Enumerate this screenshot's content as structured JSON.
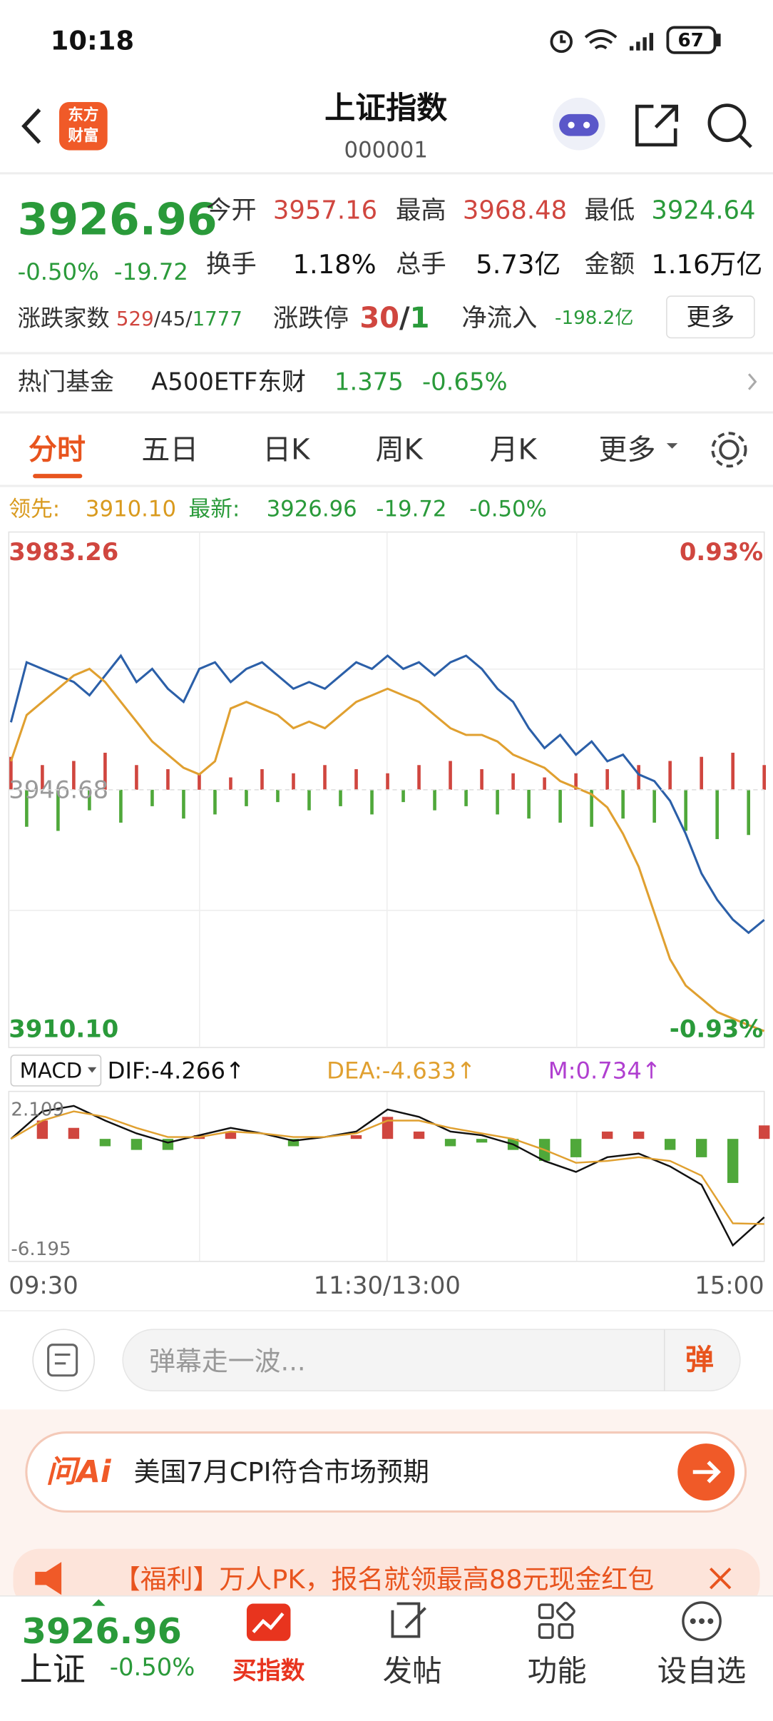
{
  "status": {
    "time": "10:18",
    "battery": "67"
  },
  "header": {
    "logo": [
      "东方",
      "财富"
    ],
    "title": "上证指数",
    "code": "000001"
  },
  "quote": {
    "price": "3926.96",
    "change_pct": "-0.50%",
    "change": "-19.72",
    "stats": [
      {
        "label": "今开",
        "value": "3957.16"
      },
      {
        "label": "最高",
        "value": "3968.48"
      },
      {
        "label": "最低",
        "value": "3924.64"
      },
      {
        "label": "换手",
        "value": "1.18%"
      },
      {
        "label": "总手",
        "value": "5.73亿"
      },
      {
        "label": "金额",
        "value": "1.16万亿"
      }
    ],
    "breadth": {
      "label": "涨跌家数",
      "up": "529",
      "flat": "45",
      "down": "1777"
    },
    "limit": {
      "label": "涨跌停",
      "up": "30",
      "down": "1"
    },
    "inflow": {
      "label": "净流入",
      "value": "-198.2亿"
    },
    "more": "更多"
  },
  "fund": {
    "label": "热门基金",
    "name": "A500ETF东财",
    "price": "1.375",
    "pct": "-0.65%"
  },
  "tabs": [
    "分时",
    "五日",
    "日K",
    "周K",
    "月K",
    "更多"
  ],
  "legend": {
    "lead_label": "领先:",
    "lead": "3910.10",
    "latest_label": "最新:",
    "latest": "3926.96",
    "change": "-19.72",
    "pct": "-0.50%"
  },
  "chart": {
    "type": "line",
    "ylim": [
      3910.1,
      3983.26
    ],
    "yticks": [
      3983.26,
      3946.68,
      {
        "value": 3910.1,
        "label": "3910.10"
      }
    ],
    "y2lim": [
      -0.93,
      0.93
    ],
    "y2ticks": [
      {
        "value": 0.93,
        "label": "0.93%"
      },
      {
        "value": -0.93,
        "label": "-0.93%"
      }
    ],
    "xticks": [
      "09:30",
      "11:30/13:00",
      "15:00"
    ],
    "series": [
      {
        "color": "#2b5fa8",
        "values": [
          3956.9,
          3966,
          3965,
          3964,
          3963,
          3961,
          3964,
          3967,
          3963,
          3965,
          3962,
          3960,
          3965,
          3966,
          3963,
          3965,
          3966,
          3964,
          3962,
          3963,
          3962,
          3964,
          3966,
          3965,
          3967,
          3965,
          3966,
          3964,
          3966,
          3967,
          3965,
          3962,
          3960,
          3956,
          3953,
          3955,
          3952,
          3954,
          3951,
          3952,
          3949,
          3948,
          3945,
          3940,
          3934,
          3930,
          3927,
          3925,
          3926.96
        ]
      },
      {
        "color": "#e0a030",
        "values": [
          3951,
          3958,
          3960,
          3962,
          3964,
          3965,
          3963,
          3960,
          3957,
          3954,
          3952,
          3950,
          3949,
          3951,
          3959,
          3960,
          3959,
          3958,
          3956,
          3957,
          3956,
          3958,
          3960,
          3961,
          3962,
          3961,
          3960,
          3958,
          3956,
          3955,
          3955,
          3954,
          3952,
          3951,
          3950,
          3948,
          3947,
          3946,
          3944,
          3940,
          3935,
          3928,
          3921,
          3917,
          3915,
          3913,
          3912,
          3911,
          3910.1
        ]
      }
    ],
    "bars": {
      "up_color": "#d0463f",
      "down_color": "#4fa83a",
      "values": [
        40,
        -45,
        30,
        -50,
        35,
        -25,
        45,
        -40,
        30,
        -20,
        25,
        -35,
        20,
        -30,
        15,
        -20,
        25,
        -15,
        20,
        -25,
        30,
        -20,
        25,
        -30,
        20,
        -15,
        30,
        -25,
        35,
        -20,
        25,
        -30,
        20,
        -35,
        15,
        -40,
        20,
        -45,
        25,
        -35,
        30,
        -40,
        35,
        -50,
        40,
        -60,
        45,
        -55,
        30
      ]
    }
  },
  "macd": {
    "label": "MACD",
    "dif": "DIF:-4.266↑",
    "dea": "DEA:-4.633↑",
    "m": "M:0.734↑",
    "ylim": [
      -6.195,
      2.109
    ],
    "yticks": [
      2.109,
      -6.195
    ],
    "dif_color": "#111111",
    "dea_color": "#e0a030",
    "up_color": "#d0463f",
    "down_color": "#4fa83a",
    "dif_values": [
      0,
      1.5,
      1.8,
      1.0,
      0.3,
      -0.2,
      0.2,
      0.6,
      0.3,
      -0.1,
      0.1,
      0.4,
      1.6,
      1.2,
      0.4,
      0.2,
      -0.3,
      -1.2,
      -1.8,
      -1.0,
      -0.8,
      -1.5,
      -2.5,
      -5.8,
      -4.266
    ],
    "dea_values": [
      0,
      1.0,
      1.5,
      1.2,
      0.6,
      0.1,
      0.1,
      0.4,
      0.3,
      0.1,
      0.1,
      0.3,
      1.0,
      1.0,
      0.6,
      0.3,
      0.0,
      -0.6,
      -1.3,
      -1.2,
      -1.0,
      -1.2,
      -2.0,
      -4.6,
      -4.633
    ],
    "hist": [
      0,
      1.0,
      0.6,
      -0.4,
      -0.6,
      -0.6,
      0.2,
      0.4,
      0,
      -0.4,
      0,
      0.2,
      1.2,
      0.4,
      -0.4,
      -0.2,
      -0.6,
      -1.2,
      -1.0,
      0.4,
      0.4,
      -0.6,
      -1.0,
      -2.4,
      0.734
    ]
  },
  "comment": {
    "placeholder": "弹幕走一波...",
    "button": "弹"
  },
  "ai": {
    "label": "问Ai",
    "text": "美国7月CPI符合市场预期"
  },
  "promo": {
    "text": "【福利】万人PK，报名就领最高88元现金红包"
  },
  "nav": {
    "price": "3926.96",
    "name": "上证",
    "pct": "-0.50%",
    "items": [
      "买指数",
      "发帖",
      "功能",
      "设自选"
    ]
  }
}
